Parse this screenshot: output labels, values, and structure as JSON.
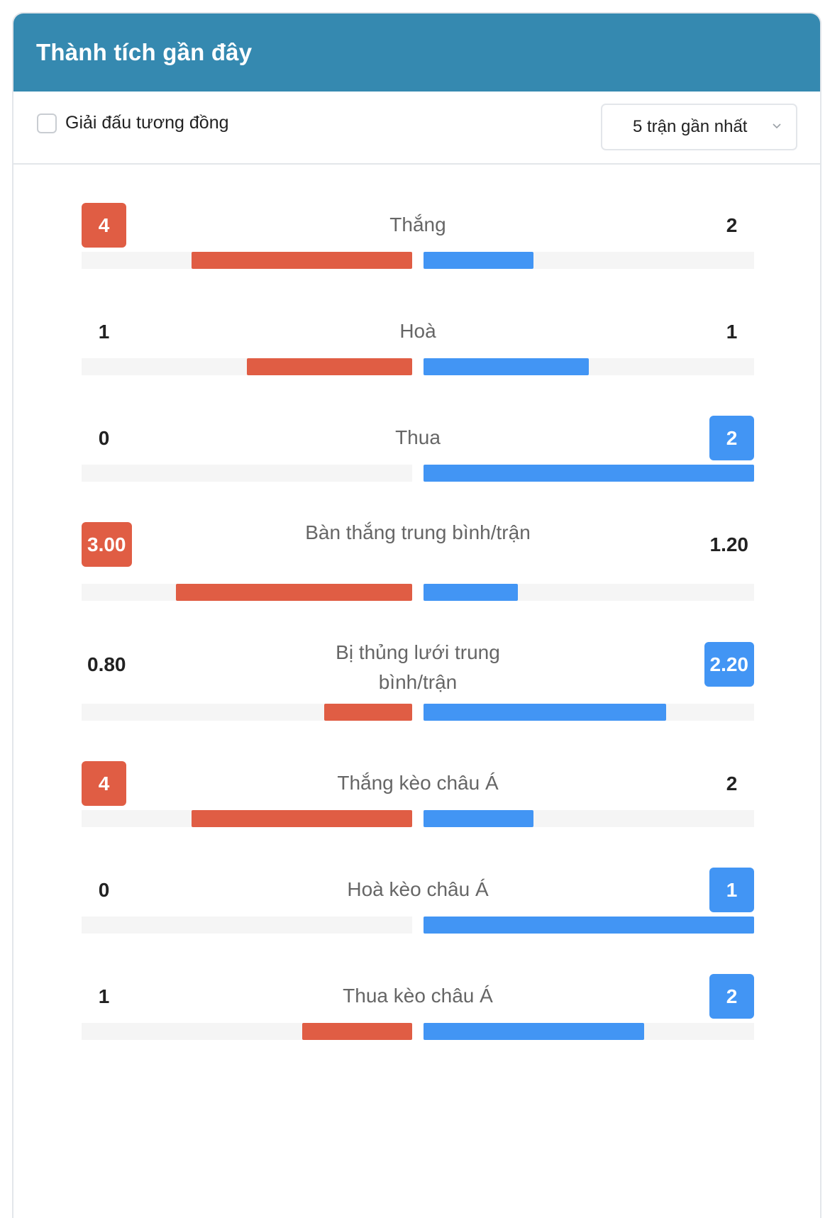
{
  "header": {
    "title": "Thành tích gần đây"
  },
  "filter": {
    "checkbox_label": "Giải đấu tương đồng",
    "checkbox_checked": false,
    "select_value": "5 trận gần nhất"
  },
  "colors": {
    "header_bg": "#3589b0",
    "home": "#e05d44",
    "away": "#4295f4",
    "track": "#f5f5f5"
  },
  "stats": [
    {
      "label": "Thắng",
      "home": "4",
      "away": "2",
      "home_share": 0.667,
      "away_share": 0.333,
      "highlight": "home"
    },
    {
      "label": "Hoà",
      "home": "1",
      "away": "1",
      "home_share": 0.5,
      "away_share": 0.5,
      "highlight": "none"
    },
    {
      "label": "Thua",
      "home": "0",
      "away": "2",
      "home_share": 0.0,
      "away_share": 1.0,
      "highlight": "away"
    },
    {
      "label": "Bàn thắng trung bình/trận",
      "home": "3.00",
      "away": "1.20",
      "home_share": 0.714,
      "away_share": 0.286,
      "highlight": "home"
    },
    {
      "label": "Bị thủng lưới trung bình/trận",
      "home": "0.80",
      "away": "2.20",
      "home_share": 0.267,
      "away_share": 0.733,
      "highlight": "away"
    },
    {
      "label": "Thắng kèo châu Á",
      "home": "4",
      "away": "2",
      "home_share": 0.667,
      "away_share": 0.333,
      "highlight": "home"
    },
    {
      "label": "Hoà kèo châu Á",
      "home": "0",
      "away": "1",
      "home_share": 0.0,
      "away_share": 1.0,
      "highlight": "away"
    },
    {
      "label": "Thua kèo châu Á",
      "home": "1",
      "away": "2",
      "home_share": 0.333,
      "away_share": 0.667,
      "highlight": "away"
    }
  ]
}
